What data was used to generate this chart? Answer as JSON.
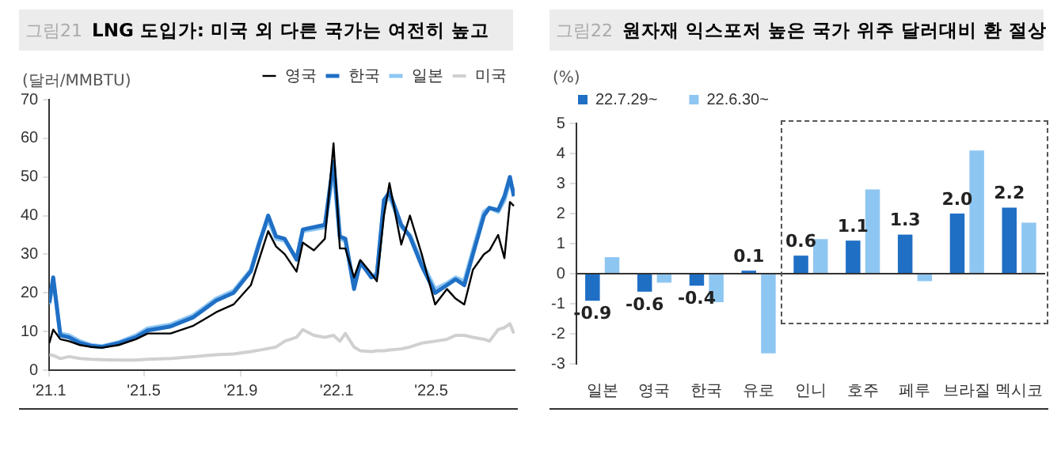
{
  "chart_data": [
    {
      "type": "line",
      "title": "LNG 도입가: 미국 외 다른 국가는 여전히 높고",
      "annotations": [
        "그림21"
      ],
      "ylabel": "(달러/MMBTU)",
      "x": [
        "2021-01-01",
        "2021-01-06",
        "2021-01-15",
        "2021-01-26",
        "2021-02-09",
        "2021-02-23",
        "2021-03-09",
        "2021-03-30",
        "2021-04-21",
        "2021-05-06",
        "2021-06-04",
        "2021-07-03",
        "2021-08-01",
        "2021-08-23",
        "2021-09-14",
        "2021-09-25",
        "2021-10-06",
        "2021-10-16",
        "2021-10-27",
        "2021-11-11",
        "2021-11-19",
        "2021-12-03",
        "2021-12-17",
        "2021-12-28",
        "2022-01-05",
        "2022-01-12",
        "2022-01-23",
        "2022-01-31",
        "2022-02-14",
        "2022-02-21",
        "2022-03-02",
        "2022-03-09",
        "2022-03-24",
        "2022-04-04",
        "2022-04-19",
        "2022-05-06",
        "2022-05-21",
        "2022-06-01",
        "2022-06-12",
        "2022-06-23",
        "2022-07-07",
        "2022-07-14",
        "2022-07-25",
        "2022-08-02",
        "2022-08-09",
        "2022-08-14"
      ],
      "series": [
        {
          "name": "한국",
          "color": "#1f6fc5",
          "values": [
            17.5,
            24,
            9,
            8.5,
            7,
            6.3,
            6,
            7,
            8.5,
            10.3,
            11.3,
            13.7,
            18,
            20,
            25.6,
            33,
            40,
            34.6,
            34,
            28.6,
            36.4,
            37,
            37.6,
            54,
            34.6,
            34,
            21,
            28,
            24,
            24.5,
            44,
            46,
            37.6,
            34.6,
            27,
            20,
            22,
            23.5,
            22,
            30,
            40,
            42,
            41.4,
            45,
            50,
            45
          ]
        },
        {
          "name": "일본",
          "color": "#8ec6f2",
          "values": [
            17,
            23.5,
            9.5,
            9,
            7.5,
            6.5,
            6.2,
            7.2,
            9,
            10.8,
            11.8,
            14.2,
            18.5,
            20.5,
            26,
            33.5,
            39,
            34,
            33.5,
            29,
            36,
            36.5,
            37,
            52,
            34,
            33.5,
            22,
            27.5,
            24.5,
            25,
            43,
            45,
            37,
            35,
            28,
            21,
            22.5,
            24,
            23,
            31,
            41,
            42,
            41,
            44,
            49,
            46
          ]
        },
        {
          "name": "영국",
          "color": "#000000",
          "values": [
            7,
            10.5,
            8,
            7.5,
            6.5,
            6,
            5.8,
            6.5,
            8,
            9.5,
            9.5,
            11.5,
            15,
            17,
            22,
            29,
            36,
            32,
            30,
            25.5,
            33,
            31,
            34,
            58.7,
            31.5,
            31.5,
            24,
            28.5,
            25,
            23,
            40,
            48.4,
            32.5,
            40,
            30,
            17,
            21,
            18.5,
            17,
            26,
            30,
            31,
            35,
            29,
            43.5,
            42.5
          ]
        },
        {
          "name": "미국",
          "color": "#d0d0d0",
          "values": [
            4,
            3.8,
            3,
            3.5,
            3,
            2.8,
            2.7,
            2.6,
            2.6,
            2.8,
            3,
            3.5,
            4,
            4.2,
            4.8,
            5.2,
            5.6,
            6,
            7.5,
            8.5,
            10.5,
            9,
            8.5,
            9,
            7.5,
            9.5,
            6,
            5,
            4.8,
            5,
            5,
            5.2,
            5.5,
            6,
            7,
            7.5,
            8,
            9,
            9,
            8.5,
            8,
            7.5,
            10.5,
            11,
            12,
            9.5
          ]
        }
      ],
      "xlim": [
        "2021-01-01",
        "2022-08-15"
      ],
      "xticks": [
        {
          "value": "2021-01-01",
          "label": "'21.1"
        },
        {
          "value": "2021-05-01",
          "label": "'21.5"
        },
        {
          "value": "2021-09-01",
          "label": "'21.9"
        },
        {
          "value": "2022-01-01",
          "label": "'22.1"
        },
        {
          "value": "2022-05-01",
          "label": "'22.5"
        }
      ],
      "ylim": [
        0,
        70
      ],
      "yticks": [
        0,
        10,
        20,
        30,
        40,
        50,
        60,
        70
      ],
      "legend": "top right",
      "marker": "none",
      "line_style": "solid"
    },
    {
      "type": "bar",
      "title": "원자재 익스포저 높은 국가 위주 달러대비 환 절상",
      "annotations": [
        "그림22"
      ],
      "ylabel": "(%)",
      "categories": [
        "일본",
        "영국",
        "한국",
        "유로",
        "인니",
        "호주",
        "페루",
        "브라질",
        "멕시코"
      ],
      "series": [
        {
          "name": "22.7.29~",
          "color": "#1f6fc5",
          "values": [
            -0.9,
            -0.6,
            -0.4,
            0.1,
            0.6,
            1.1,
            1.3,
            2.0,
            2.2
          ],
          "value_labels": [
            "-0.9",
            "-0.6",
            "-0.4",
            "0.1",
            "0.6",
            "1.1",
            "1.3",
            "2.0",
            "2.2"
          ]
        },
        {
          "name": "22.6.30~",
          "color": "#8ec6f2",
          "values": [
            0.55,
            -0.3,
            -0.95,
            -2.65,
            1.15,
            2.8,
            -0.25,
            4.1,
            1.7
          ]
        }
      ],
      "ylim": [
        -3,
        5
      ],
      "yticks": [
        -3,
        -2,
        -1,
        0,
        1,
        2,
        3,
        4,
        5
      ],
      "legend": "top left"
    }
  ]
}
